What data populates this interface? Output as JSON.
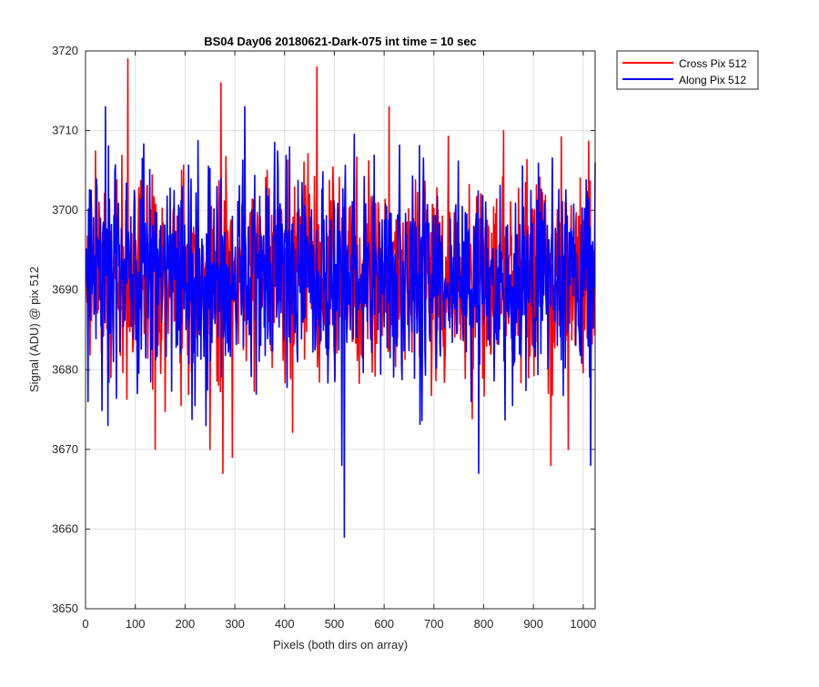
{
  "chart_data": {
    "type": "line",
    "title": "BS04 Day06 20180621-Dark-075 int time = 10 sec",
    "xlabel": "Pixels (both dirs on array)",
    "ylabel": "Signal (ADU) @ pix 512",
    "xlim": [
      0,
      1024
    ],
    "ylim": [
      3650,
      3720
    ],
    "x_ticks": [
      0,
      100,
      200,
      300,
      400,
      500,
      600,
      700,
      800,
      900,
      1000
    ],
    "y_ticks": [
      3650,
      3660,
      3670,
      3680,
      3690,
      3700,
      3710,
      3720
    ],
    "grid": true,
    "legend_position": "outside top-right",
    "series": [
      {
        "name": "Cross Pix 512",
        "color": "#ff0000",
        "x_start": 1,
        "x_end": 1024,
        "mean": 3692,
        "keypoints": [
          [
            85,
            3719
          ],
          [
            272,
            3716
          ],
          [
            276,
            3667
          ],
          [
            465,
            3718
          ],
          [
            250,
            3670
          ],
          [
            295,
            3669
          ],
          [
            140,
            3670
          ],
          [
            935,
            3668
          ],
          [
            970,
            3670
          ],
          [
            610,
            3713
          ],
          [
            840,
            3710
          ]
        ]
      },
      {
        "name": "Along Pix 512",
        "color": "#0000ff",
        "x_start": 1,
        "x_end": 1024,
        "mean": 3692,
        "keypoints": [
          [
            40,
            3713
          ],
          [
            520,
            3659
          ],
          [
            515,
            3668
          ],
          [
            790,
            3667
          ],
          [
            1015,
            3668
          ],
          [
            320,
            3713
          ],
          [
            5,
            3676
          ],
          [
            45,
            3673
          ],
          [
            1024,
            3706
          ]
        ]
      }
    ]
  }
}
